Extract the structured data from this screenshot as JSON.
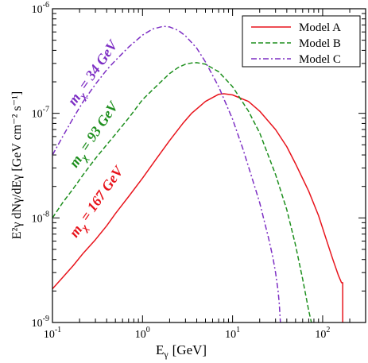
{
  "chart_data": {
    "type": "line",
    "x_scale": "log",
    "y_scale": "log",
    "xlim": [
      0.1,
      300
    ],
    "ylim": [
      1e-09,
      1e-06
    ],
    "xlabel": {
      "base": "E",
      "sub": "γ",
      "unit": "[GeV]"
    },
    "ylabel": {
      "text": "E²γ dNγ/dEγ  [GeV cm⁻² s⁻¹]"
    },
    "x_ticks": [
      {
        "value": 0.1,
        "base": "10",
        "exp": "-1"
      },
      {
        "value": 1,
        "base": "10",
        "exp": "0"
      },
      {
        "value": 10,
        "base": "10",
        "exp": "1"
      },
      {
        "value": 100,
        "base": "10",
        "exp": "2"
      }
    ],
    "y_ticks": [
      {
        "value": 1e-09,
        "base": "10",
        "exp": "-9"
      },
      {
        "value": 1e-08,
        "base": "10",
        "exp": "-8"
      },
      {
        "value": 1e-07,
        "base": "10",
        "exp": "-7"
      },
      {
        "value": 1e-06,
        "base": "10",
        "exp": "-6"
      }
    ],
    "legend_position": "top-right",
    "series": [
      {
        "name": "Model A",
        "color": "#e8141c",
        "dash": "solid",
        "points": [
          [
            0.1,
            2.1e-09
          ],
          [
            0.13,
            2.7e-09
          ],
          [
            0.17,
            3.5e-09
          ],
          [
            0.22,
            4.6e-09
          ],
          [
            0.3,
            6.2e-09
          ],
          [
            0.4,
            8.4e-09
          ],
          [
            0.5,
            1.1e-08
          ],
          [
            0.7,
            1.6e-08
          ],
          [
            1.0,
            2.4e-08
          ],
          [
            1.4,
            3.6e-08
          ],
          [
            2.0,
            5.5e-08
          ],
          [
            2.8,
            8e-08
          ],
          [
            3.5,
            1e-07
          ],
          [
            5.0,
            1.3e-07
          ],
          [
            7.0,
            1.52e-07
          ],
          [
            8.0,
            1.54e-07
          ],
          [
            10,
            1.5e-07
          ],
          [
            15,
            1.3e-07
          ],
          [
            20,
            1.05e-07
          ],
          [
            30,
            7e-08
          ],
          [
            40,
            4.8e-08
          ],
          [
            50,
            3.3e-08
          ],
          [
            70,
            1.8e-08
          ],
          [
            90,
            1.05e-08
          ],
          [
            110,
            6.2e-09
          ],
          [
            130,
            4e-09
          ],
          [
            150,
            2.8e-09
          ],
          [
            162,
            2.4e-09
          ],
          [
            167,
            2.4e-09
          ],
          [
            167,
            1e-09
          ]
        ]
      },
      {
        "name": "Model B",
        "color": "#1e8f1e",
        "dash": "dashed",
        "points": [
          [
            0.1,
            1e-08
          ],
          [
            0.13,
            1.4e-08
          ],
          [
            0.17,
            1.9e-08
          ],
          [
            0.22,
            2.6e-08
          ],
          [
            0.3,
            3.7e-08
          ],
          [
            0.4,
            5e-08
          ],
          [
            0.5,
            6.3e-08
          ],
          [
            0.7,
            9e-08
          ],
          [
            1.0,
            1.35e-07
          ],
          [
            1.5,
            1.9e-07
          ],
          [
            2.0,
            2.4e-07
          ],
          [
            2.5,
            2.75e-07
          ],
          [
            3.0,
            2.95e-07
          ],
          [
            3.5,
            3.03e-07
          ],
          [
            4.0,
            3.05e-07
          ],
          [
            5.0,
            2.95e-07
          ],
          [
            7.0,
            2.5e-07
          ],
          [
            10,
            1.8e-07
          ],
          [
            15,
            1.05e-07
          ],
          [
            20,
            6.5e-08
          ],
          [
            30,
            2.6e-08
          ],
          [
            40,
            1.2e-08
          ],
          [
            50,
            5.5e-09
          ],
          [
            60,
            2.6e-09
          ],
          [
            70,
            1.3e-09
          ],
          [
            75,
            1e-09
          ]
        ]
      },
      {
        "name": "Model C",
        "color": "#7d2fc4",
        "dash": "dashdot",
        "points": [
          [
            0.1,
            4e-08
          ],
          [
            0.13,
            6e-08
          ],
          [
            0.17,
            9e-08
          ],
          [
            0.22,
            1.3e-07
          ],
          [
            0.3,
            1.9e-07
          ],
          [
            0.4,
            2.6e-07
          ],
          [
            0.5,
            3.2e-07
          ],
          [
            0.7,
            4.3e-07
          ],
          [
            1.0,
            5.6e-07
          ],
          [
            1.3,
            6.4e-07
          ],
          [
            1.7,
            6.8e-07
          ],
          [
            2.0,
            6.7e-07
          ],
          [
            2.5,
            6.2e-07
          ],
          [
            3.0,
            5.5e-07
          ],
          [
            4.0,
            4.2e-07
          ],
          [
            5.0,
            3.1e-07
          ],
          [
            7.0,
            1.8e-07
          ],
          [
            10,
            8.8e-08
          ],
          [
            13,
            4.6e-08
          ],
          [
            17,
            2.2e-08
          ],
          [
            20,
            1.4e-08
          ],
          [
            25,
            6.5e-09
          ],
          [
            28,
            4.2e-09
          ],
          [
            30,
            3e-09
          ],
          [
            32,
            2e-09
          ],
          [
            33,
            1.5e-09
          ],
          [
            34,
            1e-09
          ]
        ]
      }
    ],
    "annotations": [
      {
        "base": "m",
        "sub": "χ",
        "text": " = 34 GeV",
        "color": "#7d2fc4"
      },
      {
        "base": "m",
        "sub": "χ",
        "text": " = 93 GeV",
        "color": "#1e8f1e"
      },
      {
        "base": "m",
        "sub": "χ",
        "text": " = 167 GeV",
        "color": "#e8141c"
      }
    ]
  }
}
